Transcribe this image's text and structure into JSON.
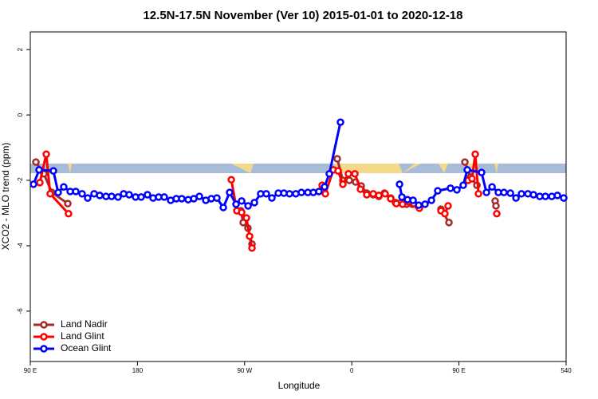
{
  "chart_data": {
    "type": "line",
    "title": "12.5N-17.5N November (Ver 10)   2015-01-01 to 2020-12-18",
    "x_label": "Longitude",
    "y_label": "XCO2 - MLO trend (ppm)",
    "xlim": [
      90,
      540
    ],
    "ylim": [
      -7.54,
      2.54
    ],
    "xticks": [
      {
        "value": 90,
        "label": "90 E"
      },
      180,
      {
        "value": 270,
        "label": "90 W"
      },
      {
        "value": 360,
        "label": "0"
      },
      {
        "value": 450,
        "label": "90 E"
      },
      540
    ],
    "yticks": [
      2,
      0,
      -2,
      -4,
      -6
    ],
    "legend": "bottom-left",
    "series": [
      {
        "name": "Land Nadir",
        "color": "#a52a2a",
        "x": [
          94.7,
          101.4,
          108.1,
          121.5,
          null,
          266.8,
          268.8,
          272.8,
          276.2,
          null,
          347.8,
          352.5,
          357.9,
          363.2,
          367.9,
          372.6,
          378,
          382.7,
          387.4,
          392.7,
          396.7,
          401.4,
          406.1,
          410.8,
          415.5,
          null,
          434.9,
          441.6,
          null,
          455,
          459.7,
          465.1,
          null,
          480.4,
          481.1
        ],
        "values": [
          -1.44,
          -1.8,
          -2.37,
          -2.71,
          null,
          -2.93,
          -3.29,
          -3.46,
          -3.95,
          null,
          -1.34,
          -2.0,
          -2.0,
          -2.05,
          -2.17,
          -2.39,
          -2.44,
          -2.49,
          -2.39,
          -2.54,
          -2.68,
          -2.68,
          -2.73,
          -2.73,
          -2.78,
          null,
          -2.88,
          -3.29,
          null,
          -1.44,
          -1.9,
          -2.15,
          null,
          -2.63,
          -2.78
        ]
      },
      {
        "name": "Land Glint",
        "color": "#ff0000",
        "x": [
          98.0,
          103.4,
          106.7,
          122.1,
          null,
          258.8,
          263.5,
          267.5,
          271.5,
          274.2,
          276.2,
          null,
          335.1,
          337.8,
          344.5,
          348.5,
          352.5,
          357.2,
          362.6,
          367.3,
          372.6,
          378,
          382.7,
          388,
          392.7,
          397.4,
          402.7,
          407.4,
          412.1,
          416.8,
          null,
          434.9,
          438.2,
          440.9,
          null,
          457.7,
          461,
          463.7,
          466.4,
          null,
          481.8
        ],
        "values": [
          -2.07,
          -1.2,
          -2.41,
          -3.02,
          null,
          -1.98,
          -2.93,
          -2.98,
          -3.15,
          -3.71,
          -4.07,
          null,
          -2.15,
          -2.41,
          -1.68,
          -1.71,
          -2.12,
          -1.8,
          -1.8,
          -2.27,
          -2.44,
          -2.41,
          -2.46,
          -2.41,
          -2.56,
          -2.71,
          -2.73,
          -2.66,
          -2.71,
          -2.85,
          null,
          -2.93,
          -3.02,
          -2.78,
          null,
          -2.0,
          -1.95,
          -1.2,
          -2.41,
          null,
          -3.02
        ]
      },
      {
        "name": "Ocean Glint",
        "color": "#0000ff",
        "x": [
          92.7,
          97.4,
          109.4,
          113.4,
          118.1,
          123.5,
          128.2,
          133.5,
          138.2,
          143.6,
          148.3,
          153.6,
          158.3,
          163.7,
          168.4,
          173,
          178.4,
          183.1,
          188.4,
          193.1,
          197.8,
          202.5,
          207.9,
          212.6,
          217.2,
          222.6,
          227.3,
          232,
          237.4,
          242,
          246.7,
          252.1,
          257.4,
          262.8,
          267.5,
          272.9,
          278.2,
          283.5,
          288.2,
          292.9,
          298.3,
          303,
          307.7,
          313,
          317.7,
          323.1,
          327.7,
          332.4,
          337.1,
          341.1,
          350.5,
          null,
          400.1,
          402.1,
          406.8,
          411.5,
          416.2,
          421.5,
          426.9,
          432.2,
          442.9,
          448.3,
          453.6,
          457,
          469,
          473.1,
          477.8,
          483.1,
          487.8,
          493.2,
          497.9,
          502.5,
          507.9,
          512.6,
          517.9,
          522.6,
          528,
          532.7,
          538
        ],
        "values": [
          -2.12,
          -1.68,
          -1.71,
          -2.37,
          -2.2,
          -2.34,
          -2.34,
          -2.41,
          -2.54,
          -2.41,
          -2.46,
          -2.49,
          -2.49,
          -2.51,
          -2.41,
          -2.44,
          -2.51,
          -2.51,
          -2.44,
          -2.54,
          -2.51,
          -2.51,
          -2.61,
          -2.56,
          -2.56,
          -2.59,
          -2.56,
          -2.49,
          -2.61,
          -2.56,
          -2.54,
          -2.83,
          -2.37,
          -2.73,
          -2.63,
          -2.78,
          -2.68,
          -2.41,
          -2.41,
          -2.54,
          -2.39,
          -2.39,
          -2.41,
          -2.41,
          -2.37,
          -2.37,
          -2.37,
          -2.34,
          -2.2,
          -1.8,
          -0.22,
          null,
          -2.12,
          -2.51,
          -2.59,
          -2.61,
          -2.76,
          -2.73,
          -2.61,
          -2.32,
          -2.24,
          -2.29,
          -2.15,
          -1.68,
          -1.76,
          -2.37,
          -2.2,
          -2.37,
          -2.37,
          -2.39,
          -2.54,
          -2.41,
          -2.41,
          -2.44,
          -2.49,
          -2.49,
          -2.49,
          -2.46,
          -2.54
        ]
      }
    ]
  }
}
